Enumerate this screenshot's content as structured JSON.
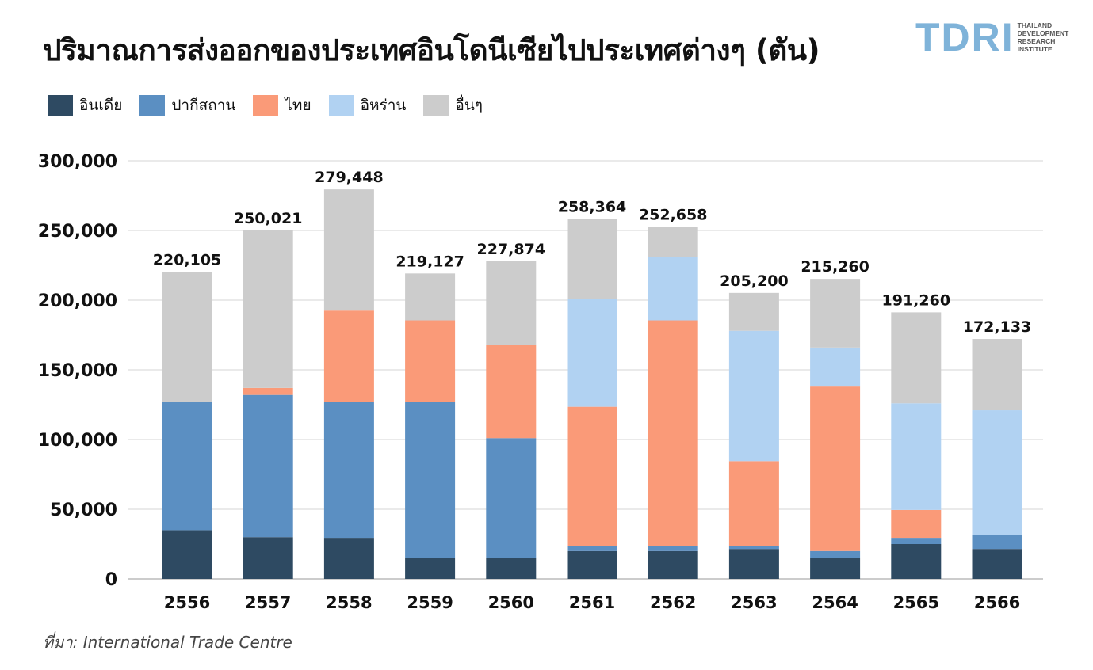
{
  "title": "ปริมาณการส่งออกของประเทศอินโดนีเซียไปประเทศต่างๆ (ตัน)",
  "logo": {
    "mark": "TDRI",
    "lines": [
      "THAILAND",
      "DEVELOPMENT",
      "RESEARCH",
      "INSTITUTE"
    ],
    "color": "#7fb3d9"
  },
  "source": "ที่มา: International Trade Centre",
  "chart_data": {
    "type": "bar",
    "stacked": true,
    "categories": [
      "2556",
      "2557",
      "2558",
      "2559",
      "2560",
      "2561",
      "2562",
      "2563",
      "2564",
      "2565",
      "2566"
    ],
    "series": [
      {
        "name": "อินเดีย",
        "color": "#2e4a62",
        "values": [
          35000,
          30000,
          29500,
          15000,
          15000,
          20000,
          20000,
          21500,
          15000,
          25000,
          21500
        ]
      },
      {
        "name": "ปากีสถาน",
        "color": "#5b8fc2",
        "values": [
          92000,
          102000,
          97500,
          112000,
          86000,
          3500,
          3500,
          2000,
          5000,
          4500,
          10000
        ]
      },
      {
        "name": "ไทย",
        "color": "#fa9a78",
        "values": [
          0,
          5000,
          65500,
          58500,
          67000,
          100000,
          162000,
          61000,
          118000,
          20000,
          0
        ]
      },
      {
        "name": "อิหร่าน",
        "color": "#b1d2f2",
        "values": [
          0,
          0,
          0,
          0,
          0,
          77500,
          45500,
          93500,
          28000,
          76500,
          89500
        ]
      },
      {
        "name": "อื่นๆ",
        "color": "#cccccc",
        "values": [
          93105,
          113021,
          86948,
          33627,
          59874,
          57364,
          21658,
          27200,
          49260,
          65260,
          51133
        ]
      }
    ],
    "totals": [
      220105,
      250021,
      279448,
      219127,
      227874,
      258364,
      252658,
      205200,
      215260,
      191260,
      172133
    ],
    "total_labels": [
      "220,105",
      "250,021",
      "279,448",
      "219,127",
      "227,874",
      "258,364",
      "252,658",
      "205,200",
      "215,260",
      "191,260",
      "172,133"
    ],
    "ylim": [
      0,
      300000
    ],
    "yticks": [
      0,
      50000,
      100000,
      150000,
      200000,
      250000,
      300000
    ],
    "ytick_labels": [
      "0",
      "50,000",
      "100,000",
      "150,000",
      "200,000",
      "250,000",
      "300,000"
    ],
    "grid": true,
    "legend_position": "top-left",
    "xlabel": "",
    "ylabel": ""
  }
}
